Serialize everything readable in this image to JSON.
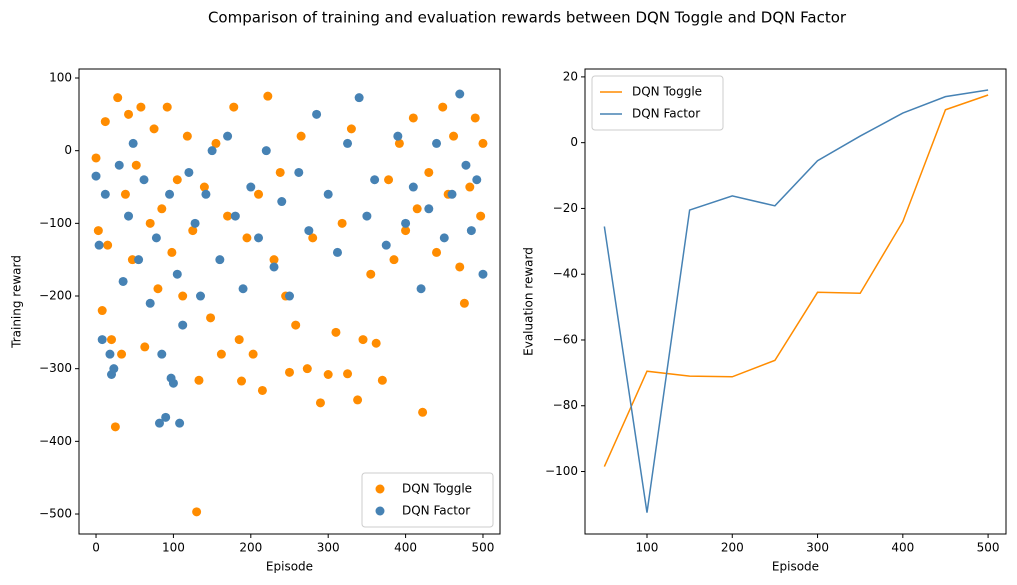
{
  "title": "Comparison of training and evaluation rewards between DQN Toggle and DQN Factor",
  "chart_data": [
    {
      "type": "scatter",
      "xlabel": "Episode",
      "ylabel": "Training reward",
      "xlim": [
        -22,
        522
      ],
      "ylim": [
        -527.5,
        112.4
      ],
      "xticks": [
        0,
        100,
        200,
        300,
        400,
        500
      ],
      "yticks": [
        {
          "value": -500,
          "label": "−500"
        },
        {
          "value": -400,
          "label": "−400"
        },
        {
          "value": -300,
          "label": "−300"
        },
        {
          "value": -200,
          "label": "−200"
        },
        {
          "value": -100,
          "label": "−100"
        },
        0,
        100
      ],
      "legend": "lower right",
      "series": [
        {
          "name": "DQN Toggle",
          "color": "#ff8c00",
          "x": [
            0,
            3,
            8,
            12,
            15,
            20,
            25,
            28,
            33,
            38,
            42,
            47,
            52,
            58,
            63,
            70,
            75,
            80,
            85,
            92,
            98,
            105,
            112,
            118,
            125,
            130,
            133,
            140,
            148,
            155,
            162,
            170,
            178,
            185,
            188,
            195,
            203,
            210,
            215,
            222,
            230,
            238,
            245,
            250,
            258,
            265,
            273,
            280,
            290,
            300,
            310,
            318,
            325,
            330,
            338,
            345,
            355,
            362,
            370,
            378,
            385,
            392,
            400,
            410,
            415,
            422,
            430,
            440,
            448,
            455,
            462,
            470,
            476,
            483,
            490,
            497,
            500
          ],
          "y": [
            -10,
            -110,
            -220,
            40,
            -130,
            -260,
            -380,
            73,
            -280,
            -60,
            50,
            -150,
            -20,
            60,
            -270,
            -100,
            30,
            -190,
            -80,
            60,
            -140,
            -40,
            -200,
            20,
            -110,
            -497,
            -316,
            -50,
            -230,
            10,
            -280,
            -90,
            60,
            -260,
            -317,
            -120,
            -280,
            -60,
            -330,
            75,
            -150,
            -30,
            -200,
            -305,
            -240,
            20,
            -300,
            -120,
            -347,
            -308,
            -250,
            -100,
            -307,
            30,
            -343,
            -260,
            -170,
            -265,
            -316,
            -40,
            -150,
            10,
            -110,
            45,
            -80,
            -360,
            -30,
            -140,
            60,
            -60,
            20,
            -160,
            -210,
            -50,
            45,
            -90,
            10
          ]
        },
        {
          "name": "DQN Factor",
          "color": "#4682b4",
          "x": [
            0,
            4,
            8,
            12,
            18,
            20,
            23,
            30,
            35,
            42,
            48,
            55,
            62,
            70,
            78,
            82,
            85,
            90,
            95,
            97,
            100,
            105,
            108,
            112,
            120,
            128,
            135,
            142,
            150,
            160,
            170,
            180,
            190,
            200,
            210,
            220,
            230,
            240,
            250,
            262,
            275,
            285,
            300,
            312,
            325,
            340,
            350,
            360,
            375,
            390,
            400,
            410,
            420,
            430,
            440,
            450,
            460,
            470,
            478,
            485,
            492,
            500
          ],
          "y": [
            -35,
            -130,
            -260,
            -60,
            -280,
            -308,
            -300,
            -20,
            -180,
            -90,
            10,
            -150,
            -40,
            -210,
            -120,
            -375,
            -280,
            -367,
            -60,
            -313,
            -320,
            -170,
            -375,
            -240,
            -30,
            -100,
            -200,
            -60,
            0,
            -150,
            20,
            -90,
            -190,
            -50,
            -120,
            0,
            -160,
            -70,
            -200,
            -30,
            -110,
            50,
            -60,
            -140,
            10,
            73,
            -90,
            -40,
            -130,
            20,
            -100,
            -50,
            -190,
            -80,
            10,
            -120,
            -60,
            78,
            -20,
            -110,
            -40,
            -170
          ]
        }
      ]
    },
    {
      "type": "line",
      "xlabel": "Episode",
      "ylabel": "Evaluation reward",
      "xlim": [
        27.3,
        521
      ],
      "ylim": [
        -119,
        22.4
      ],
      "xticks": [
        100,
        200,
        300,
        400,
        500
      ],
      "yticks": [
        {
          "value": -100,
          "label": "−100"
        },
        {
          "value": -80,
          "label": "−80"
        },
        {
          "value": -60,
          "label": "−60"
        },
        {
          "value": -40,
          "label": "−40"
        },
        {
          "value": -20,
          "label": "−20"
        },
        0,
        20
      ],
      "legend": "upper left",
      "x": [
        50,
        100,
        150,
        200,
        250,
        300,
        350,
        400,
        450,
        500
      ],
      "series": [
        {
          "name": "DQN Toggle",
          "color": "#ff8c00",
          "values": [
            -98.5,
            -69.5,
            -71,
            -71.2,
            -66.2,
            -45.5,
            -45.8,
            -24,
            10,
            14.5
          ]
        },
        {
          "name": "DQN Factor",
          "color": "#4682b4",
          "values": [
            -25.5,
            -112.5,
            -20.5,
            -16.2,
            -19.2,
            -5.5,
            2,
            9,
            14,
            16
          ]
        }
      ]
    }
  ]
}
